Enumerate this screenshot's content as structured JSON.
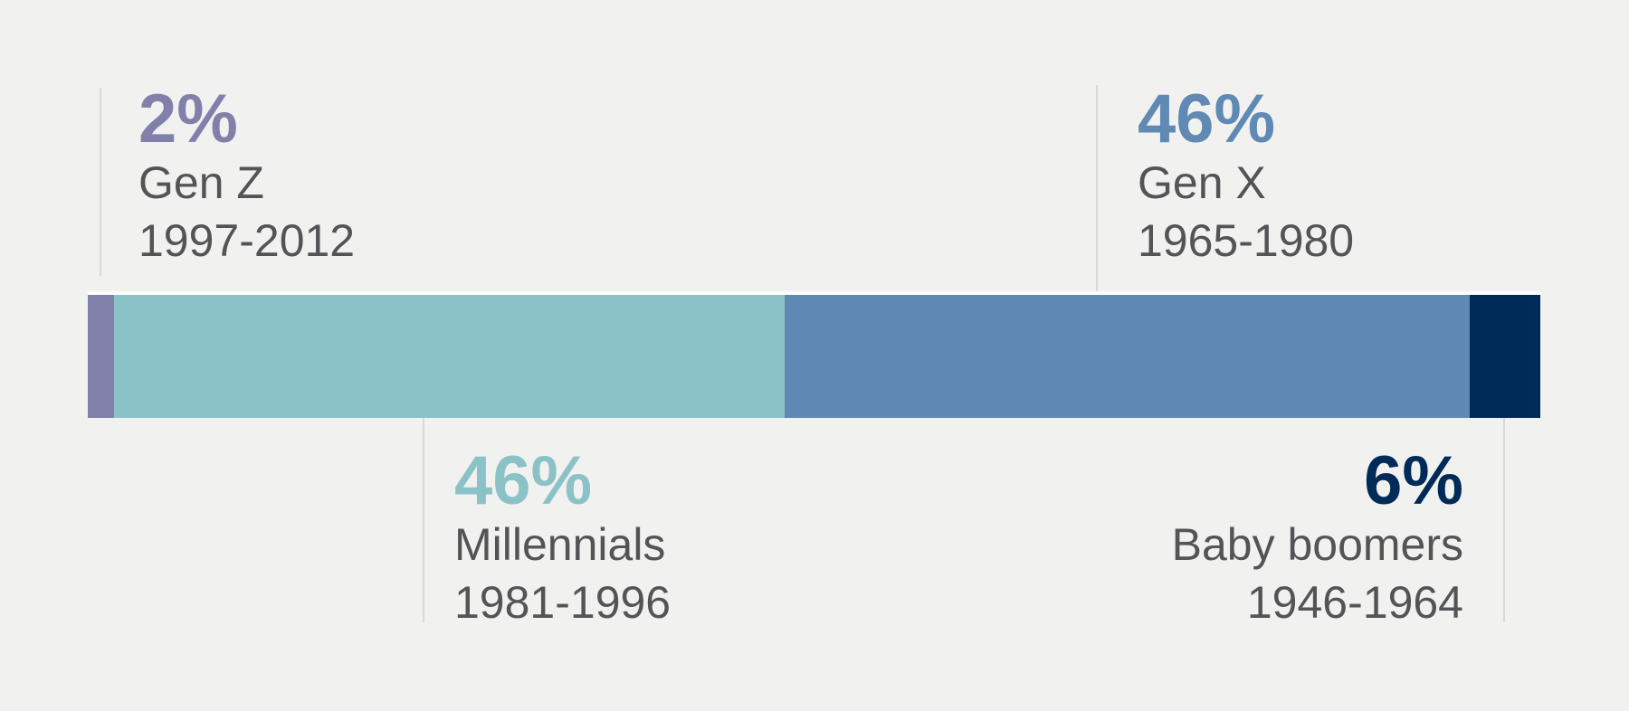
{
  "background_color": "#f1f1f0",
  "leader_line_color": "#d9d9d9",
  "sublabel_text_color": "#545456",
  "chart_data": {
    "type": "bar",
    "orientation": "horizontal_stacked",
    "title": "",
    "unit": "%",
    "categories": [
      "Gen Z",
      "Millennials",
      "Gen X",
      "Baby boomers"
    ],
    "values": [
      2,
      46,
      46,
      6
    ],
    "legend_position": "none",
    "grid": false,
    "segments": [
      {
        "id": "gen-z",
        "value": 2,
        "value_label": "2%",
        "name": "Gen Z",
        "years": "1997-2012",
        "color": "#8180ab",
        "render_width_pct": 1.81,
        "label_position": "above-left",
        "label_align": "left"
      },
      {
        "id": "millennials",
        "value": 46,
        "value_label": "46%",
        "name": "Millennials",
        "years": "1981-1996",
        "color": "#8bc2c8",
        "render_width_pct": 46.17,
        "label_position": "below-left",
        "label_align": "left"
      },
      {
        "id": "gen-x",
        "value": 46,
        "value_label": "46%",
        "name": "Gen X",
        "years": "1965-1980",
        "color": "#6089b4",
        "render_width_pct": 47.16,
        "label_position": "above-right",
        "label_align": "left"
      },
      {
        "id": "baby-boomers",
        "value": 6,
        "value_label": "6%",
        "name": "Baby boomers",
        "years": "1946-1964",
        "color": "#002a57",
        "render_width_pct": 4.86,
        "label_position": "below-right",
        "label_align": "right"
      }
    ]
  }
}
